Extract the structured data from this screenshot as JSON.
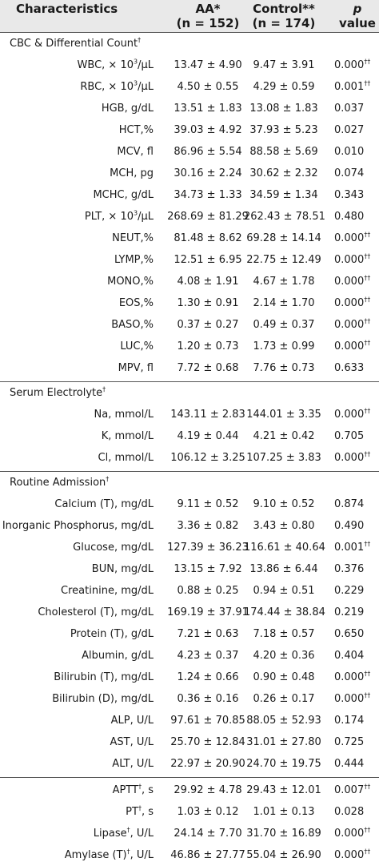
{
  "header": {
    "characteristics": "Characteristics",
    "aa_line1": "AA*",
    "aa_line2": "(n = 152)",
    "control_line1": "Control**",
    "control_line2": "(n = 174)",
    "p_value": "p value"
  },
  "sections": [
    {
      "title": "CBC & Differential Count",
      "title_mark": "†",
      "rows": [
        {
          "label": "WBC, × 10",
          "sup": "3",
          "label_tail": "/μL",
          "aa": "13.47 ± 4.90",
          "control": "9.47 ± 3.91",
          "p": "0.000",
          "p_mark": "††"
        },
        {
          "label": "RBC, × 10",
          "sup": "3",
          "label_tail": "/μL",
          "aa": "4.50 ± 0.55",
          "control": "4.29 ± 0.59",
          "p": "0.001",
          "p_mark": "††"
        },
        {
          "label": "HGB, g/dL",
          "aa": "13.51 ± 1.83",
          "control": "13.08 ± 1.83",
          "p": "0.037"
        },
        {
          "label": "HCT,%",
          "aa": "39.03 ± 4.92",
          "control": "37.93 ± 5.23",
          "p": "0.027"
        },
        {
          "label": "MCV, fl",
          "aa": "86.96 ± 5.54",
          "control": "88.58 ± 5.69",
          "p": "0.010"
        },
        {
          "label": "MCH, pg",
          "aa": "30.16 ± 2.24",
          "control": "30.62 ± 2.32",
          "p": "0.074"
        },
        {
          "label": "MCHC, g/dL",
          "aa": "34.73 ± 1.33",
          "control": "34.59 ± 1.34",
          "p": "0.343"
        },
        {
          "label": "PLT, × 10",
          "sup": "3",
          "label_tail": "/μL",
          "aa": "268.69 ± 81.29",
          "control": "262.43 ± 78.51",
          "p": "0.480"
        },
        {
          "label": "NEUT,%",
          "aa": "81.48 ± 8.62",
          "control": "69.28 ± 14.14",
          "p": "0.000",
          "p_mark": "††"
        },
        {
          "label": "LYMP,%",
          "aa": "12.51 ± 6.95",
          "control": "22.75 ± 12.49",
          "p": "0.000",
          "p_mark": "††"
        },
        {
          "label": "MONO,%",
          "aa": "4.08 ± 1.91",
          "control": "4.67 ± 1.78",
          "p": "0.000",
          "p_mark": "††"
        },
        {
          "label": "EOS,%",
          "aa": "1.30 ± 0.91",
          "control": "2.14 ± 1.70",
          "p": "0.000",
          "p_mark": "††"
        },
        {
          "label": "BASO,%",
          "aa": "0.37 ± 0.27",
          "control": "0.49 ± 0.37",
          "p": "0.000",
          "p_mark": "††"
        },
        {
          "label": "LUC,%",
          "aa": "1.20 ± 0.73",
          "control": "1.73 ± 0.99",
          "p": "0.000",
          "p_mark": "††"
        },
        {
          "label": "MPV, fl",
          "aa": "7.72 ± 0.68",
          "control": "7.76 ± 0.73",
          "p": "0.633"
        }
      ]
    },
    {
      "title": "Serum Electrolyte",
      "title_mark": "†",
      "rows": [
        {
          "label": "Na, mmol/L",
          "aa": "143.11 ± 2.83",
          "control": "144.01 ± 3.35",
          "p": "0.000",
          "p_mark": "††"
        },
        {
          "label": "K, mmol/L",
          "aa": "4.19 ± 0.44",
          "control": "4.21 ± 0.42",
          "p": "0.705"
        },
        {
          "label": "Cl, mmol/L",
          "aa": "106.12 ± 3.25",
          "control": "107.25 ± 3.83",
          "p": "0.000",
          "p_mark": "††"
        }
      ]
    },
    {
      "title": "Routine Admission",
      "title_mark": "†",
      "rows": [
        {
          "label": "Calcium (T), mg/dL",
          "aa": "9.11 ± 0.52",
          "control": "9.10 ± 0.52",
          "p": "0.874"
        },
        {
          "label": "Inorganic Phosphorus, mg/dL",
          "aa": "3.36 ± 0.82",
          "control": "3.43 ± 0.80",
          "p": "0.490"
        },
        {
          "label": "Glucose, mg/dL",
          "aa": "127.39 ± 36.23",
          "control": "116.61 ± 40.64",
          "p": "0.001",
          "p_mark": "††"
        },
        {
          "label": "BUN, mg/dL",
          "aa": "13.15 ± 7.92",
          "control": "13.86 ± 6.44",
          "p": "0.376"
        },
        {
          "label": "Creatinine, mg/dL",
          "aa": "0.88 ± 0.25",
          "control": "0.94 ± 0.51",
          "p": "0.229"
        },
        {
          "label": "Cholesterol (T), mg/dL",
          "aa": "169.19 ± 37.91",
          "control": "174.44 ± 38.84",
          "p": "0.219"
        },
        {
          "label": "Protein (T), g/dL",
          "aa": "7.21 ± 0.63",
          "control": "7.18 ± 0.57",
          "p": "0.650"
        },
        {
          "label": "Albumin, g/dL",
          "aa": "4.23 ± 0.37",
          "control": "4.20 ± 0.36",
          "p": "0.404"
        },
        {
          "label": "Bilirubin (T), mg/dL",
          "aa": "1.24 ± 0.66",
          "control": "0.90 ± 0.48",
          "p": "0.000",
          "p_mark": "††"
        },
        {
          "label": "Bilirubin (D), mg/dL",
          "aa": "0.36 ± 0.16",
          "control": "0.26 ± 0.17",
          "p": "0.000",
          "p_mark": "††"
        },
        {
          "label": "ALP, U/L",
          "aa": "97.61 ± 70.85",
          "control": "88.05 ± 52.93",
          "p": "0.174"
        },
        {
          "label": "AST, U/L",
          "aa": "25.70 ± 12.84",
          "control": "31.01 ± 27.80",
          "p": "0.725"
        },
        {
          "label": "ALT, U/L",
          "aa": "22.97 ± 20.90",
          "control": "24.70 ± 19.75",
          "p": "0.444"
        }
      ]
    },
    {
      "title": "",
      "rows": [
        {
          "label": "APTT",
          "label_mark": "†",
          "label_tail": ", s",
          "aa": "29.92 ± 4.78",
          "control": "29.43 ± 12.01",
          "p": "0.007",
          "p_mark": "††"
        },
        {
          "label": "PT",
          "label_mark": "†",
          "label_tail": ", s",
          "aa": "1.03 ± 0.12",
          "control": "1.01 ± 0.13",
          "p": "0.028"
        },
        {
          "label": "Lipase",
          "label_mark": "†",
          "label_tail": ", U/L",
          "aa": "24.14 ± 7.70",
          "control": "31.70 ± 16.89",
          "p": "0.000",
          "p_mark": "††"
        },
        {
          "label": "Amylase (T)",
          "label_mark": "†",
          "label_tail": ", U/L",
          "aa": "46.86 ± 27.77",
          "control": "55.04 ± 26.90",
          "p": "0.000",
          "p_mark": "††"
        }
      ]
    }
  ]
}
